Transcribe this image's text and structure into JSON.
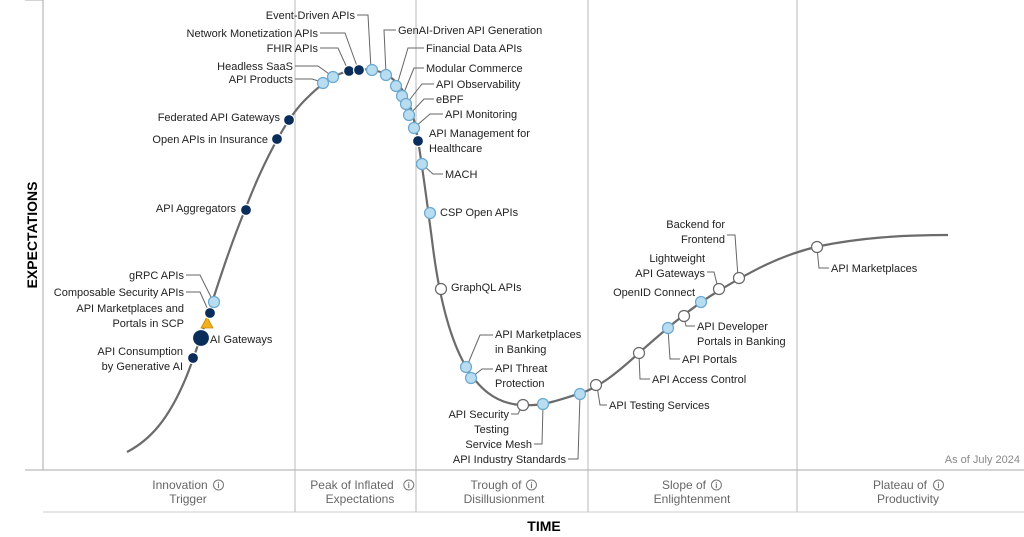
{
  "chart_data": {
    "type": "hype-cycle",
    "xlabel": "TIME",
    "ylabel": "EXPECTATIONS",
    "as_of": "As of July 2024",
    "phases": [
      {
        "line1": "Innovation",
        "line2": "Trigger"
      },
      {
        "line1": "Peak of Inflated",
        "line2": "Expectations"
      },
      {
        "line1": "Trough of",
        "line2": "Disillusionment"
      },
      {
        "line1": "Slope of",
        "line2": "Enlightenment"
      },
      {
        "line1": "Plateau of",
        "line2": "Productivity"
      }
    ],
    "legend_marker_colors": {
      "dark": "#0a2d5a",
      "light": "#b8dcf0",
      "white": "#ffffff",
      "triangle": "#f2b01e",
      "curve": "#6b6b6b"
    },
    "innovations": [
      {
        "name": "API Consumption by Generative AI",
        "lines": [
          "API Consumption",
          "by Generative AI"
        ],
        "phase": "Innovation Trigger",
        "marker": "dark"
      },
      {
        "name": "AI Gateways",
        "lines": [
          "AI Gateways"
        ],
        "phase": "Innovation Trigger",
        "marker": "dark-large"
      },
      {
        "name": "API Marketplaces and Portals in SCP",
        "lines": [
          "API Marketplaces and",
          "Portals in SCP"
        ],
        "phase": "Innovation Trigger",
        "marker": "triangle"
      },
      {
        "name": "Composable Security APIs",
        "lines": [
          "Composable Security APIs"
        ],
        "phase": "Innovation Trigger",
        "marker": "dark"
      },
      {
        "name": "gRPC APIs",
        "lines": [
          "gRPC APIs"
        ],
        "phase": "Innovation Trigger",
        "marker": "light"
      },
      {
        "name": "API Aggregators",
        "lines": [
          "API Aggregators"
        ],
        "phase": "Innovation Trigger",
        "marker": "dark"
      },
      {
        "name": "Open APIs in Insurance",
        "lines": [
          "Open APIs in Insurance"
        ],
        "phase": "Innovation Trigger",
        "marker": "dark"
      },
      {
        "name": "Federated API Gateways",
        "lines": [
          "Federated API Gateways"
        ],
        "phase": "Innovation Trigger",
        "marker": "dark"
      },
      {
        "name": "API Products",
        "lines": [
          "API Products"
        ],
        "phase": "Peak of Inflated Expectations",
        "marker": "light"
      },
      {
        "name": "Headless SaaS",
        "lines": [
          "Headless SaaS"
        ],
        "phase": "Peak of Inflated Expectations",
        "marker": "light"
      },
      {
        "name": "FHIR APIs",
        "lines": [
          "FHIR APIs"
        ],
        "phase": "Peak of Inflated Expectations",
        "marker": "dark"
      },
      {
        "name": "Network Monetization APIs",
        "lines": [
          "Network Monetization APIs"
        ],
        "phase": "Peak of Inflated Expectations",
        "marker": "dark"
      },
      {
        "name": "Event-Driven APIs",
        "lines": [
          "Event-Driven APIs"
        ],
        "phase": "Peak of Inflated Expectations",
        "marker": "light"
      },
      {
        "name": "GenAI-Driven API Generation",
        "lines": [
          "GenAI-Driven API Generation"
        ],
        "phase": "Peak of Inflated Expectations",
        "marker": "light"
      },
      {
        "name": "Financial Data APIs",
        "lines": [
          "Financial Data APIs"
        ],
        "phase": "Peak of Inflated Expectations",
        "marker": "light"
      },
      {
        "name": "Modular Commerce",
        "lines": [
          "Modular Commerce"
        ],
        "phase": "Peak of Inflated Expectations",
        "marker": "light"
      },
      {
        "name": "API Observability",
        "lines": [
          "API Observability"
        ],
        "phase": "Peak of Inflated Expectations",
        "marker": "light"
      },
      {
        "name": "eBPF",
        "lines": [
          "eBPF"
        ],
        "phase": "Peak of Inflated Expectations",
        "marker": "light"
      },
      {
        "name": "API Monitoring",
        "lines": [
          "API Monitoring"
        ],
        "phase": "Peak of Inflated Expectations",
        "marker": "light"
      },
      {
        "name": "API Management for Healthcare",
        "lines": [
          "API Management for",
          "Healthcare"
        ],
        "phase": "Trough of Disillusionment",
        "marker": "dark"
      },
      {
        "name": "MACH",
        "lines": [
          "MACH"
        ],
        "phase": "Trough of Disillusionment",
        "marker": "light"
      },
      {
        "name": "CSP Open APIs",
        "lines": [
          "CSP Open APIs"
        ],
        "phase": "Trough of Disillusionment",
        "marker": "light"
      },
      {
        "name": "GraphQL APIs",
        "lines": [
          "GraphQL APIs"
        ],
        "phase": "Trough of Disillusionment",
        "marker": "white"
      },
      {
        "name": "API Marketplaces in Banking",
        "lines": [
          "API Marketplaces",
          "in Banking"
        ],
        "phase": "Trough of Disillusionment",
        "marker": "light"
      },
      {
        "name": "API Threat Protection",
        "lines": [
          "API Threat",
          "Protection"
        ],
        "phase": "Trough of Disillusionment",
        "marker": "light"
      },
      {
        "name": "API Security Testing",
        "lines": [
          "API Security",
          "Testing"
        ],
        "phase": "Trough of Disillusionment",
        "marker": "white"
      },
      {
        "name": "Service Mesh",
        "lines": [
          "Service Mesh"
        ],
        "phase": "Trough of Disillusionment",
        "marker": "light"
      },
      {
        "name": "API Industry Standards",
        "lines": [
          "API Industry Standards"
        ],
        "phase": "Trough of Disillusionment",
        "marker": "light"
      },
      {
        "name": "API Testing Services",
        "lines": [
          "API Testing Services"
        ],
        "phase": "Slope of Enlightenment",
        "marker": "white"
      },
      {
        "name": "API Access Control",
        "lines": [
          "API Access Control"
        ],
        "phase": "Slope of Enlightenment",
        "marker": "white"
      },
      {
        "name": "API Portals",
        "lines": [
          "API Portals"
        ],
        "phase": "Slope of Enlightenment",
        "marker": "light"
      },
      {
        "name": "API Developer Portals in Banking",
        "lines": [
          "API Developer",
          "Portals in Banking"
        ],
        "phase": "Slope of Enlightenment",
        "marker": "white"
      },
      {
        "name": "OpenID Connect",
        "lines": [
          "OpenID Connect"
        ],
        "phase": "Slope of Enlightenment",
        "marker": "light"
      },
      {
        "name": "Lightweight API Gateways",
        "lines": [
          "Lightweight",
          "API Gateways"
        ],
        "phase": "Slope of Enlightenment",
        "marker": "white"
      },
      {
        "name": "Backend for Frontend",
        "lines": [
          "Backend for",
          "Frontend"
        ],
        "phase": "Slope of Enlightenment",
        "marker": "white"
      },
      {
        "name": "API Marketplaces",
        "lines": [
          "API Marketplaces"
        ],
        "phase": "Plateau of Productivity",
        "marker": "white"
      }
    ]
  }
}
